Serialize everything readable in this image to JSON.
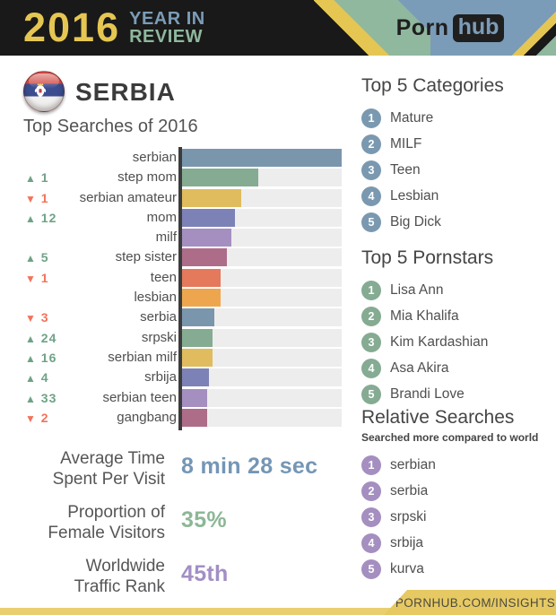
{
  "palette": {
    "header_bg": "#191919",
    "header_yellow": "#e5c652",
    "header_blue": "#7b9cb8",
    "header_green": "#8fb89e",
    "bar_track": "#ededed",
    "axis": "#3c3c3c",
    "up_change": "#6fa287",
    "down_change": "#f2735c",
    "footer_yellow": "#e6c963"
  },
  "header": {
    "year": "2016",
    "tagline_line1": "YEAR IN",
    "tagline_line2": "REVIEW",
    "brand_porn": "Porn",
    "brand_hub": "hub"
  },
  "country": {
    "name": "SERBIA",
    "flag": "serbia-flag"
  },
  "chart_data": {
    "type": "bar",
    "orientation": "horizontal",
    "title": "Top Searches of 2016",
    "xlabel": "",
    "ylabel": "",
    "xlim": [
      0,
      100
    ],
    "grid": false,
    "legend": false,
    "note": "values are relative search volume as percent of top term; change columns show rank movement vs prior year",
    "rows": [
      {
        "label": "serbian",
        "value": 100,
        "color": "#7a96ad",
        "change_icon": "",
        "change_value": "",
        "change_color": ""
      },
      {
        "label": "step mom",
        "value": 48,
        "color": "#85ab92",
        "change_icon": "▲",
        "change_value": "1",
        "change_color": "#6fa287"
      },
      {
        "label": "serbian amateur",
        "value": 37,
        "color": "#e0bc5e",
        "change_icon": "▼",
        "change_value": "1",
        "change_color": "#f2735c"
      },
      {
        "label": "mom",
        "value": 33,
        "color": "#7c82b5",
        "change_icon": "▲",
        "change_value": "12",
        "change_color": "#6fa287"
      },
      {
        "label": "milf",
        "value": 31,
        "color": "#a48fc0",
        "change_icon": "",
        "change_value": "",
        "change_color": ""
      },
      {
        "label": "step sister",
        "value": 28,
        "color": "#ad6d88",
        "change_icon": "▲",
        "change_value": "5",
        "change_color": "#6fa287"
      },
      {
        "label": "teen",
        "value": 24,
        "color": "#e4795c",
        "change_icon": "▼",
        "change_value": "1",
        "change_color": "#f2735c"
      },
      {
        "label": "lesbian",
        "value": 24,
        "color": "#eea64e",
        "change_icon": "",
        "change_value": "",
        "change_color": ""
      },
      {
        "label": "serbia",
        "value": 20,
        "color": "#7a96ad",
        "change_icon": "▼",
        "change_value": "3",
        "change_color": "#f2735c"
      },
      {
        "label": "srpski",
        "value": 19,
        "color": "#85ab92",
        "change_icon": "▲",
        "change_value": "24",
        "change_color": "#6fa287"
      },
      {
        "label": "serbian milf",
        "value": 19,
        "color": "#e0bc5e",
        "change_icon": "▲",
        "change_value": "16",
        "change_color": "#6fa287"
      },
      {
        "label": "srbija",
        "value": 17,
        "color": "#7c82b5",
        "change_icon": "▲",
        "change_value": "4",
        "change_color": "#6fa287"
      },
      {
        "label": "serbian teen",
        "value": 16,
        "color": "#a48fc0",
        "change_icon": "▲",
        "change_value": "33",
        "change_color": "#6fa287"
      },
      {
        "label": "gangbang",
        "value": 16,
        "color": "#ad6d88",
        "change_icon": "▼",
        "change_value": "2",
        "change_color": "#f2735c"
      }
    ]
  },
  "top_categories": {
    "title": "Top 5 Categories",
    "badge_color": "#7a99b0",
    "items": [
      {
        "rank": "1",
        "label": "Mature"
      },
      {
        "rank": "2",
        "label": "MILF"
      },
      {
        "rank": "3",
        "label": "Teen"
      },
      {
        "rank": "4",
        "label": "Lesbian"
      },
      {
        "rank": "5",
        "label": "Big Dick"
      }
    ]
  },
  "top_pornstars": {
    "title": "Top 5 Pornstars",
    "badge_color": "#85ab93",
    "items": [
      {
        "rank": "1",
        "label": "Lisa Ann"
      },
      {
        "rank": "2",
        "label": "Mia Khalifa"
      },
      {
        "rank": "3",
        "label": "Kim Kardashian"
      },
      {
        "rank": "4",
        "label": "Asa Akira"
      },
      {
        "rank": "5",
        "label": "Brandi Love"
      }
    ]
  },
  "relative_searches": {
    "title": "Relative Searches",
    "subtitle": "Searched more compared to world",
    "badge_color": "#a48fc0",
    "items": [
      {
        "rank": "1",
        "label": "serbian"
      },
      {
        "rank": "2",
        "label": "serbia"
      },
      {
        "rank": "3",
        "label": "srpski"
      },
      {
        "rank": "4",
        "label": "srbija"
      },
      {
        "rank": "5",
        "label": "kurva"
      }
    ]
  },
  "stats": [
    {
      "label_line1": "Average Time",
      "label_line2": "Spent Per Visit",
      "value": "8 min 28 sec",
      "color": "#7596b5"
    },
    {
      "label_line1": "Proportion of",
      "label_line2": "Female Visitors",
      "value": "35%",
      "color": "#8cb796"
    },
    {
      "label_line1": "Worldwide",
      "label_line2": "Traffic Rank",
      "value": "45th",
      "color": "#a28fc5"
    }
  ],
  "footer": {
    "link": "PORNHUB.COM/INSIGHTS"
  }
}
